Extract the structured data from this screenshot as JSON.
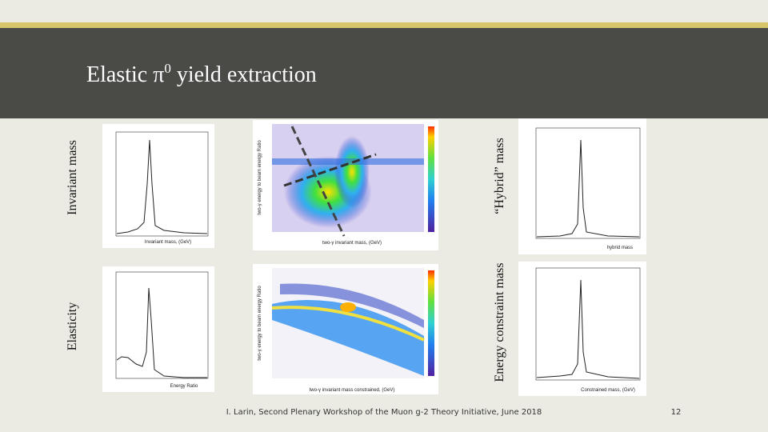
{
  "header": {
    "title": {
      "parts": [
        "Elastic π",
        "0",
        " yield extraction"
      ]
    }
  },
  "side_labels": {
    "invariant_mass": "Invariant mass",
    "elasticity": "Elasticity",
    "hybrid_mass": "“Hybrid” mass",
    "energy_constraint_mass": "Energy constraint mass"
  },
  "plots": {
    "top_left_x": "Invariant mass, (GeV)",
    "bottom_left_x": "Energy Ratio",
    "top_middle_x": "two-γ invariant mass, (GeV)",
    "top_middle_y": "two-γ energy to beam energy Ratio",
    "bottom_middle_x": "two-γ invariant mass constrained, (GeV)",
    "bottom_middle_y": "two-γ energy to beam energy Ratio",
    "top_right_x": "hybrid mass",
    "bottom_right_x": "Constrained mass, (GeV)"
  },
  "footer": {
    "text": "I. Larin, Second Plenary Workshop of the Muon g-2 Theory Initiative, June 2018",
    "page_number": "12"
  }
}
